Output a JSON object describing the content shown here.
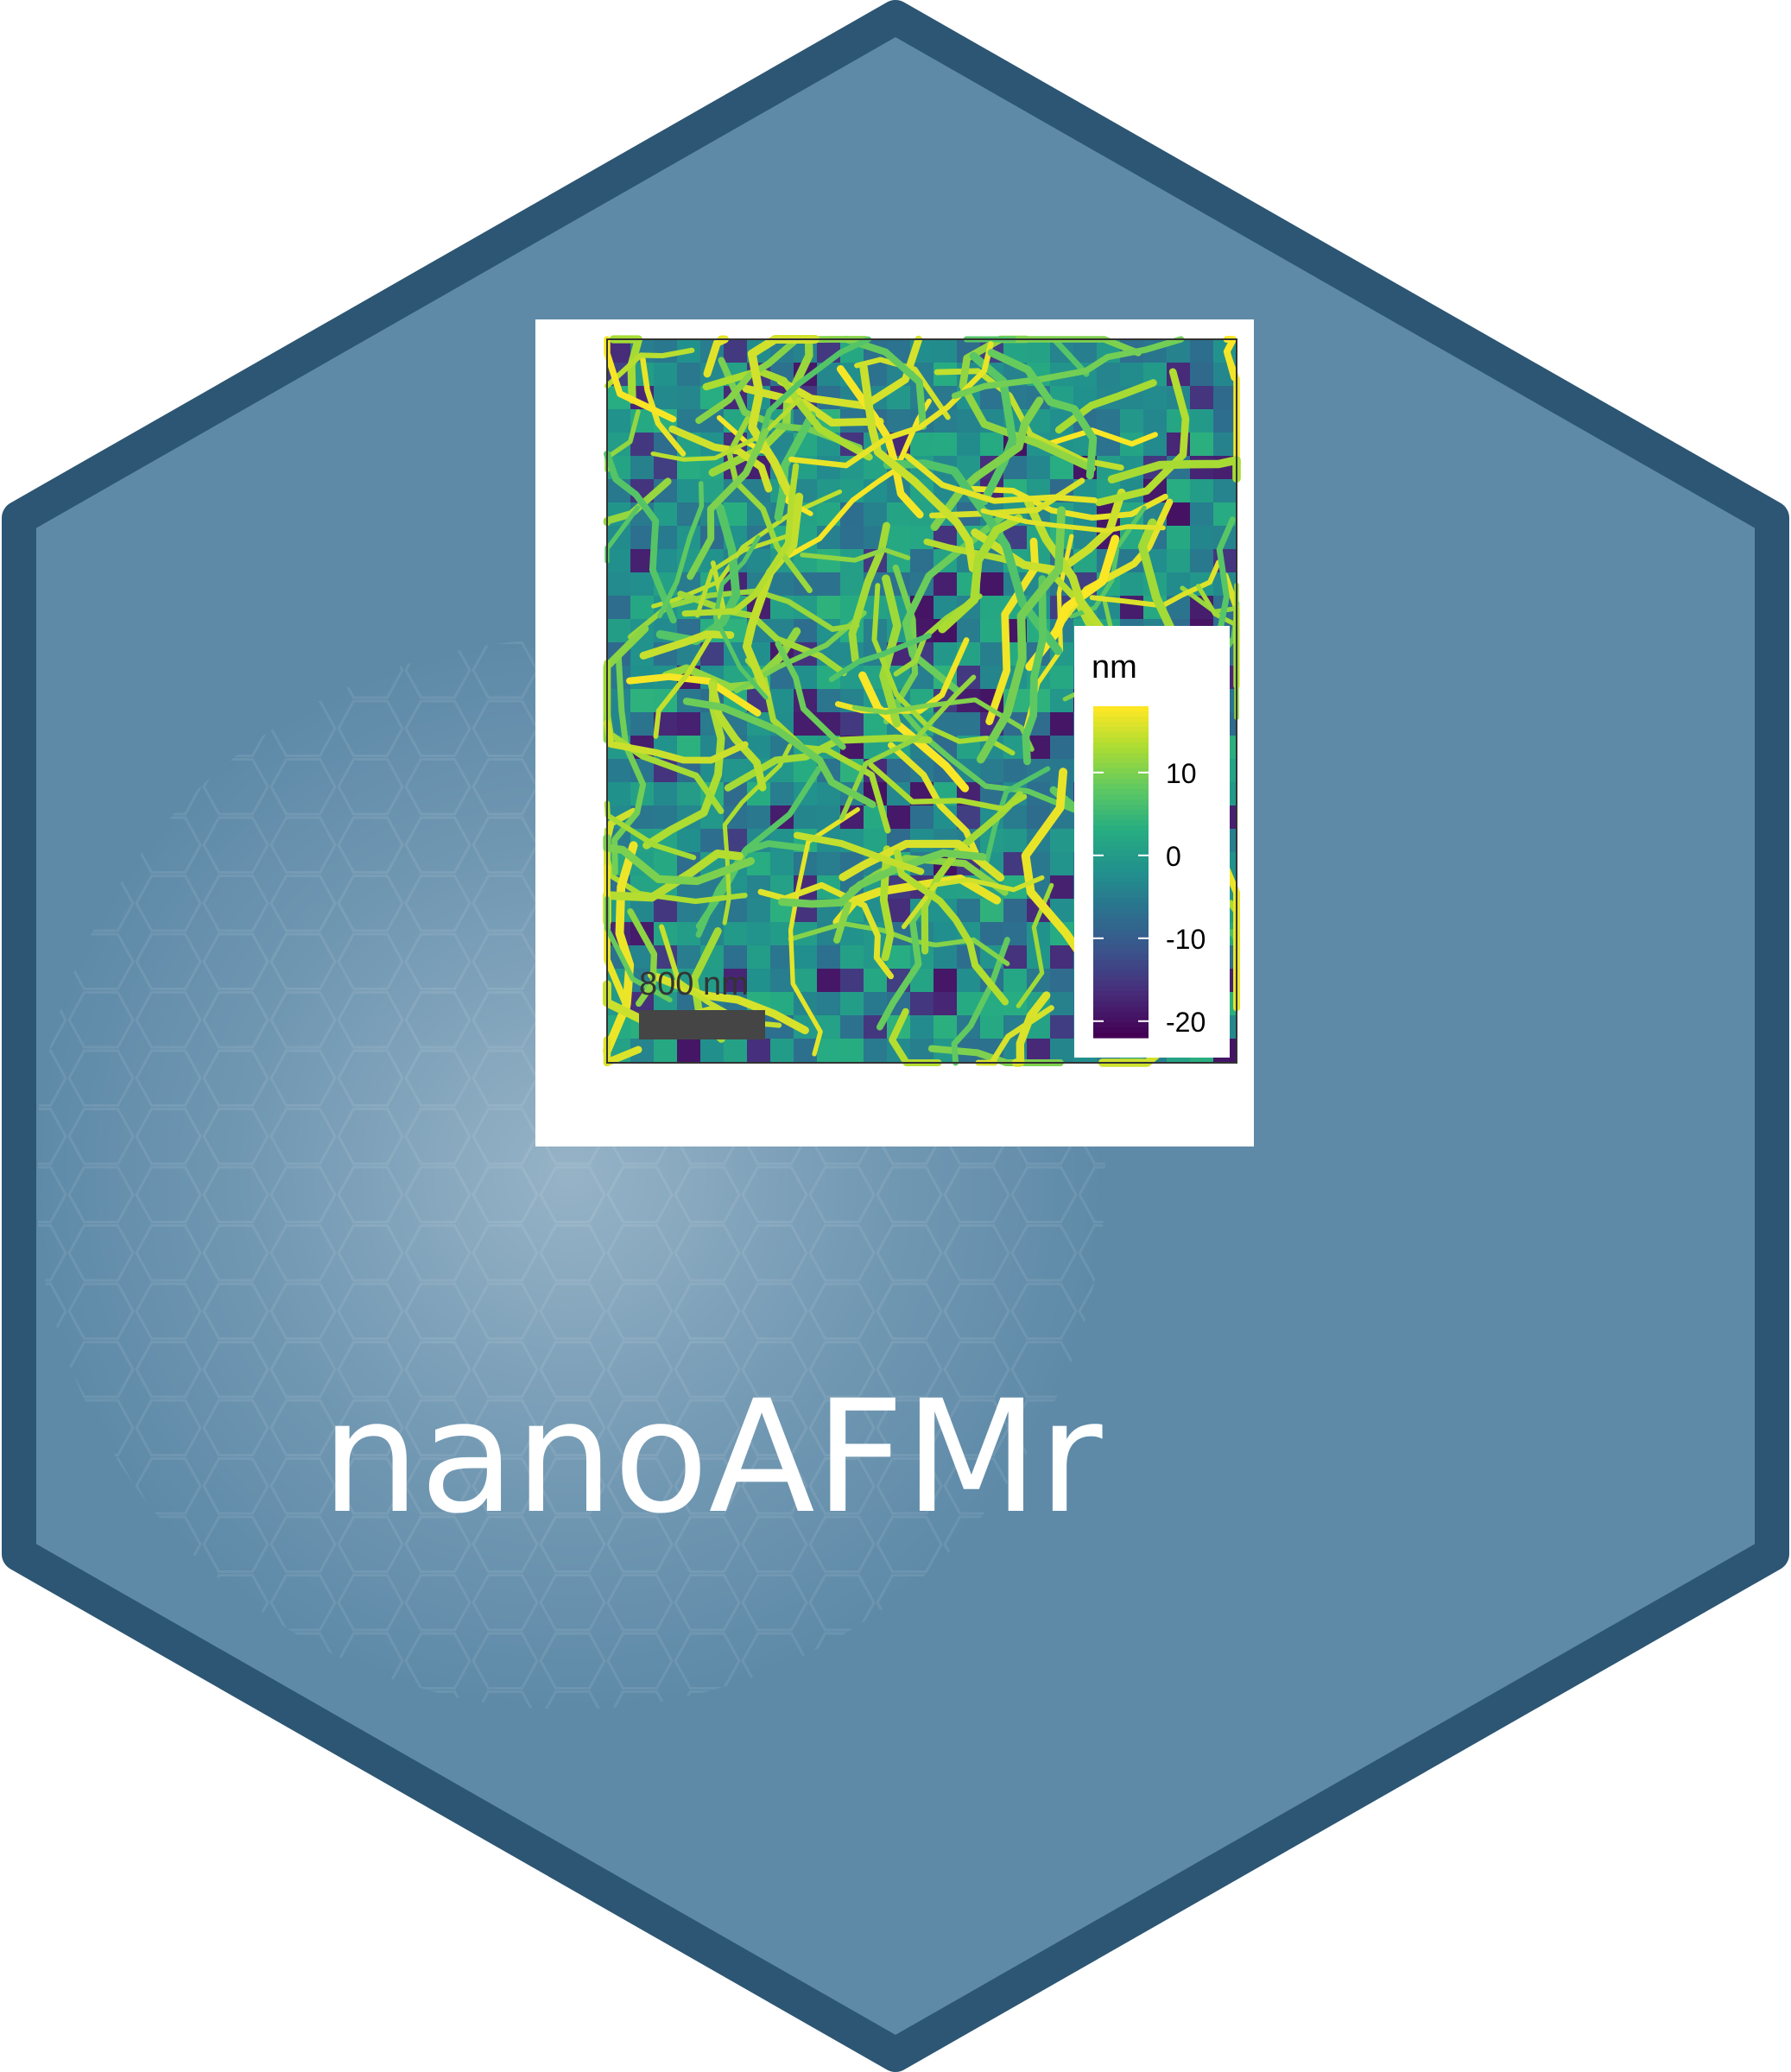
{
  "logo": {
    "package_name": "nanoAFMr",
    "colors": {
      "hex_fill": "#5e8aa8",
      "hex_border": "#2c5673",
      "text": "#ffffff",
      "panel_bg": "#ffffff"
    }
  },
  "afm_image": {
    "colormap": "viridis",
    "scale_bar_label": "800 nm",
    "legend": {
      "title": "nm",
      "ticks": [
        "10",
        "0",
        "-10",
        "-20"
      ],
      "range": [
        -22,
        18
      ]
    }
  }
}
